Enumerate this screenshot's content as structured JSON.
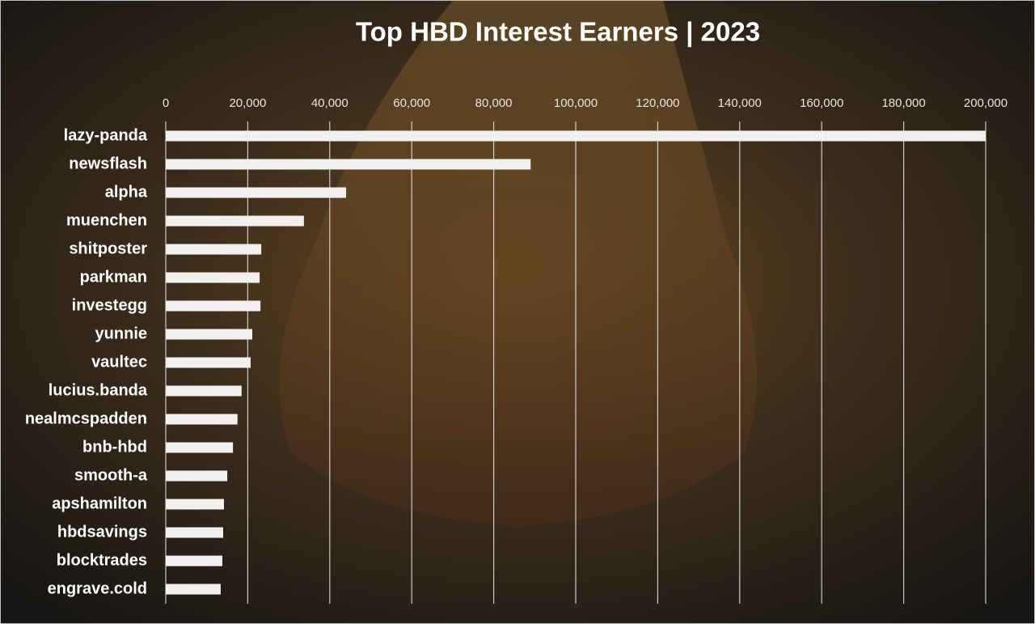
{
  "chart_data": {
    "type": "hbar",
    "title": "Top HBD Interest Earners | 2023",
    "categories": [
      "lazy-panda",
      "newsflash",
      "alpha",
      "muenchen",
      "shitposter",
      "parkman",
      "investegg",
      "yunnie",
      "vaultec",
      "lucius.banda",
      "nealmcspadden",
      "bnb-hbd",
      "smooth-a",
      "apshamilton",
      "hbdsavings",
      "blocktrades",
      "engrave.cold"
    ],
    "values": [
      200000,
      89000,
      44000,
      33700,
      23300,
      22900,
      23100,
      21100,
      20700,
      18500,
      17500,
      16400,
      15000,
      14200,
      14000,
      13800,
      13400
    ],
    "color": "#f2f0ee",
    "xlim": [
      0,
      200000
    ],
    "xticks": [
      0,
      {
        "value": 20000,
        "label": "20,000"
      },
      {
        "value": 40000,
        "label": "40,000"
      },
      {
        "value": 60000,
        "label": "60,000"
      },
      {
        "value": 80000,
        "label": "80,000"
      },
      {
        "value": 100000,
        "label": "100,000"
      },
      {
        "value": 120000,
        "label": "120,000"
      },
      {
        "value": 140000,
        "label": "140,000"
      },
      {
        "value": 160000,
        "label": "160,000"
      },
      {
        "value": 180000,
        "label": "180,000"
      },
      {
        "value": 200000,
        "label": "200,000"
      }
    ],
    "grid": true
  }
}
